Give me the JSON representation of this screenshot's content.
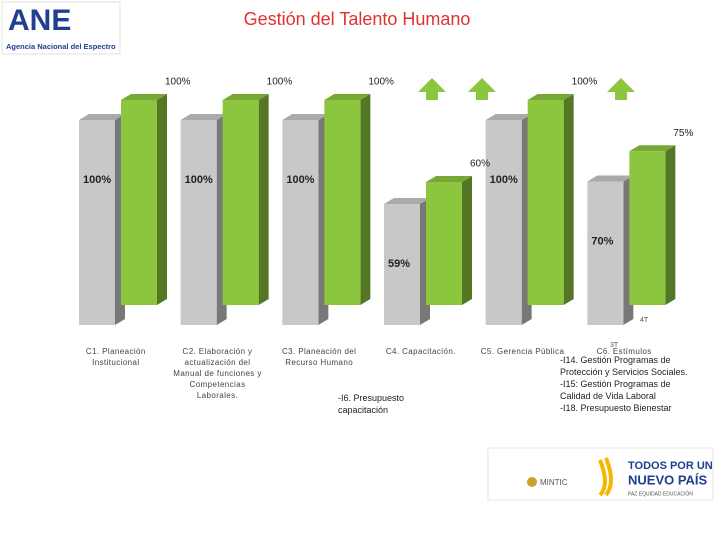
{
  "logo": {
    "name": "ANE",
    "subtitle": "Agencia Nacional del Espectro"
  },
  "chart_data": {
    "type": "bar3d",
    "title": "Gestión del Talento Humano",
    "categories": [
      "C1. Planeación Institucional",
      "C2. Elaboración y actualización del Manual de funciones y Competencias Laborales.",
      "C3. Planeación del Recurso Humano",
      "C4. Capacitación.",
      "C5. Gerencia Pública",
      "C6. Estímulos"
    ],
    "series": [
      {
        "name": "3T",
        "color": "#c8c8c8",
        "values": [
          100,
          100,
          100,
          59,
          100,
          70
        ],
        "value_labels": [
          "100%",
          "100%",
          "100%",
          "59%",
          "100%",
          "70%"
        ]
      },
      {
        "name": "4T",
        "color": "#8cc63f",
        "values": [
          100,
          100,
          100,
          60,
          100,
          75
        ],
        "value_labels": [
          "100%",
          "100%",
          "100%",
          "60%",
          "100%",
          "75%"
        ]
      }
    ],
    "ylim": [
      0,
      100
    ],
    "annotations": [
      "-I6. Presupuesto capacitación",
      "-I14. Gestión Programas de Protección y Servicios Sociales.",
      "-I15: Gestión Programas de Calidad de Vida Laboral",
      "-I18. Presupuesto Bienestar"
    ]
  },
  "footer": {
    "ministry": "MINTIC",
    "slogan1": "TODOS POR UN",
    "slogan2": "NUEVO PAÍS",
    "slogan3": "PAZ  EQUIDAD  EDUCACIÓN"
  }
}
